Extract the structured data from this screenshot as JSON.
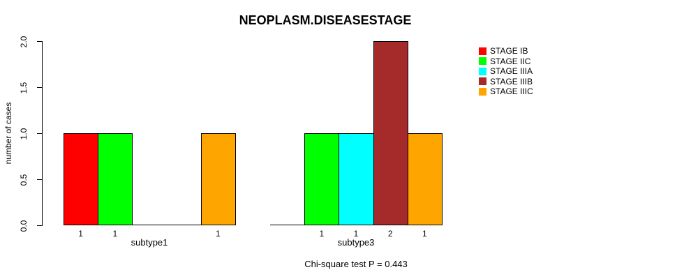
{
  "chart_data": {
    "type": "bar",
    "title": "NEOPLASM.DISEASESTAGE",
    "ylabel": "number of cases",
    "xlabel": "",
    "annotation": "Chi-square test P = 0.443",
    "groups": [
      "subtype1",
      "subtype3"
    ],
    "series": [
      {
        "name": "STAGE IB",
        "color": "#FF0000",
        "values": [
          1,
          0
        ]
      },
      {
        "name": "STAGE IIC",
        "color": "#00FF00",
        "values": [
          1,
          1
        ]
      },
      {
        "name": "STAGE IIIA",
        "color": "#00FFFF",
        "values": [
          0,
          1
        ]
      },
      {
        "name": "STAGE IIIB",
        "color": "#A52A2A",
        "values": [
          0,
          2
        ]
      },
      {
        "name": "STAGE IIIC",
        "color": "#FFA500",
        "values": [
          1,
          1
        ]
      }
    ],
    "ylim": [
      0,
      2
    ],
    "yticks": [
      "0.0",
      "0.5",
      "1.0",
      "1.5",
      "2.0"
    ],
    "legend_position": "top-right",
    "grid": false,
    "value_labels": "shown below bars for nonzero values only",
    "axis_color": "#000000",
    "background_color": "#FFFFFF"
  }
}
